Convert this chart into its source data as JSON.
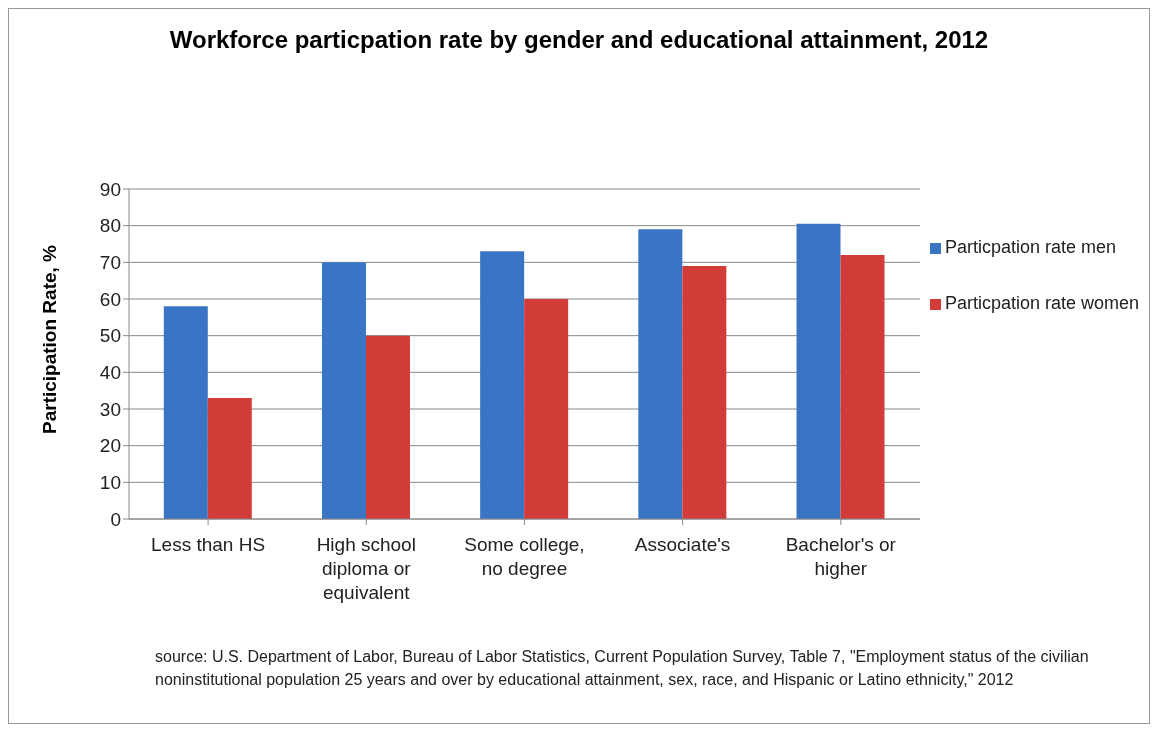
{
  "chart_data": {
    "type": "bar",
    "title": "Workforce particpation rate by gender and educational attainment, 2012",
    "ylabel": "Participation Rate, %",
    "categories": [
      "Less than HS",
      "High school diploma or equivalent",
      "Some college, no degree",
      "Associate's",
      "Bachelor's or higher"
    ],
    "series": [
      {
        "name": "Particpation rate men",
        "color": "#3a74c4",
        "values": [
          58,
          70,
          73,
          79,
          80.5
        ]
      },
      {
        "name": "Particpation rate women",
        "color": "#d23c38",
        "values": [
          33,
          50,
          60,
          69,
          72
        ]
      }
    ],
    "ylim": [
      0,
      90
    ],
    "yticks": [
      0,
      10,
      20,
      30,
      40,
      50,
      60,
      70,
      80,
      90
    ],
    "grid": "y",
    "legend": "right",
    "annotations": [
      "source: U.S. Department of Labor, Bureau of Labor Statistics, Current Population Survey, Table 7, \"Employment status of the civilian noninstitutional population 25 years and over by educational attainment, sex, race, and Hispanic or Latino ethnicity,\" 2012"
    ]
  }
}
